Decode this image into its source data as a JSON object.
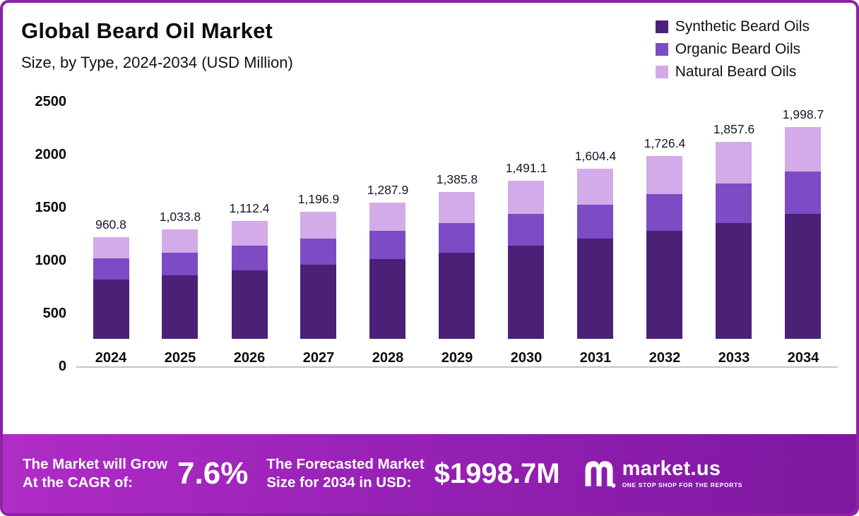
{
  "header": {
    "title": "Global Beard Oil Market",
    "subtitle": "Size, by Type, 2024-2034 (USD Million)"
  },
  "legend": [
    {
      "label": "Synthetic Beard Oils",
      "color": "#4b2178"
    },
    {
      "label": "Organic Beard Oils",
      "color": "#7d4bc3"
    },
    {
      "label": "Natural Beard Oils",
      "color": "#d2abe8"
    }
  ],
  "chart_data": {
    "type": "bar",
    "stacked": true,
    "title": "Global Beard Oil Market Size, by Type, 2024-2034 (USD Million)",
    "categories": [
      "2024",
      "2025",
      "2026",
      "2027",
      "2028",
      "2029",
      "2030",
      "2031",
      "2032",
      "2033",
      "2034"
    ],
    "series": [
      {
        "name": "Synthetic Beard Oils",
        "color": "#4b2178",
        "values": [
          560,
          600,
          650,
          700,
          755,
          815,
          880,
          945,
          1020,
          1095,
          1180
        ]
      },
      {
        "name": "Organic Beard Oils",
        "color": "#7d4bc3",
        "values": [
          200,
          215,
          230,
          245,
          262,
          280,
          300,
          322,
          345,
          372,
          400
        ]
      },
      {
        "name": "Natural Beard Oils",
        "color": "#d2abe8",
        "values": [
          200.8,
          218.8,
          232.4,
          251.9,
          270.9,
          290.8,
          311.1,
          337.4,
          361.4,
          390.6,
          418.7
        ]
      }
    ],
    "totals": [
      960.8,
      1033.8,
      1112.4,
      1196.9,
      1287.9,
      1385.8,
      1491.1,
      1604.4,
      1726.4,
      1857.6,
      1998.7
    ],
    "total_labels": [
      "960.8",
      "1,033.8",
      "1,112.4",
      "1,196.9",
      "1,287.9",
      "1,385.8",
      "1,491.1",
      "1,604.4",
      "1,726.4",
      "1,857.6",
      "1,998.7"
    ],
    "ylim": [
      0,
      2500
    ],
    "yticks": [
      0,
      500,
      1000,
      1500,
      2000,
      2500
    ],
    "ylabel": "",
    "xlabel": "",
    "grid": false,
    "legend_position": "top-right"
  },
  "footer": {
    "cagr_line1": "The Market will Grow",
    "cagr_line2": "At the CAGR of:",
    "cagr_value": "7.6%",
    "forecast_line1": "The Forecasted Market",
    "forecast_line2": "Size for 2034 in USD:",
    "forecast_value": "$1998.7M",
    "brand": "market.us",
    "tagline": "ONE STOP SHOP FOR THE REPORTS"
  }
}
